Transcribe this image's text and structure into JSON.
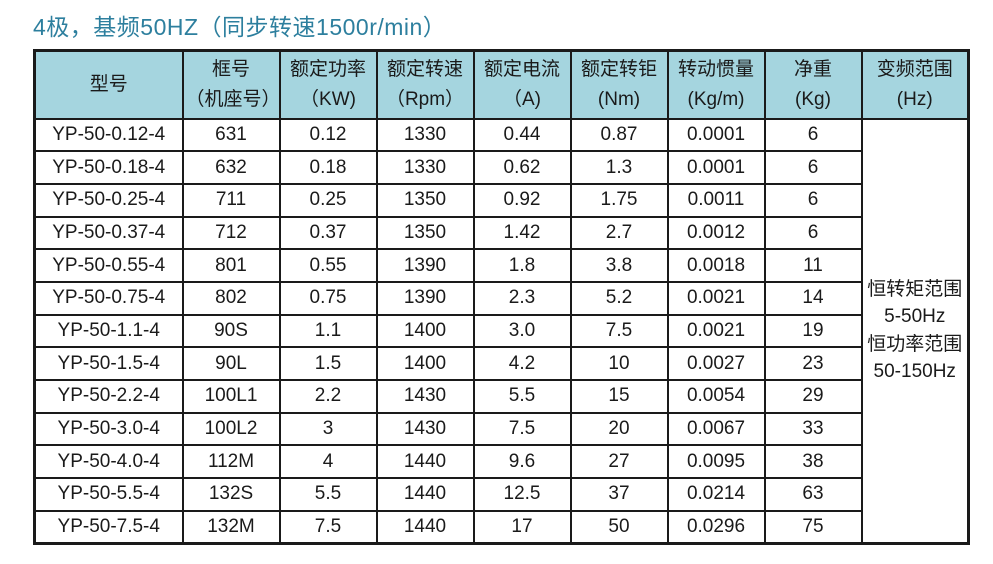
{
  "page": {
    "title": "4极，基频50HZ（同步转速1500r/min）"
  },
  "colors": {
    "title": "#2d7f9e",
    "header_bg": "#a5d5df",
    "border": "#1a1a1a"
  },
  "table": {
    "columns": [
      {
        "line1": "型号",
        "line2": ""
      },
      {
        "line1": "框号",
        "line2": "（机座号）"
      },
      {
        "line1": "额定功率",
        "line2": "（KW)"
      },
      {
        "line1": "额定转速",
        "line2": "（Rpm）"
      },
      {
        "line1": "额定电流",
        "line2": "（A)"
      },
      {
        "line1": "额定转钜",
        "line2": "(Nm)"
      },
      {
        "line1": "转动惯量",
        "line2": "(Kg/m)"
      },
      {
        "line1": "净重",
        "line2": "(Kg)"
      },
      {
        "line1": "变频范围",
        "line2": "(Hz)"
      }
    ],
    "rows": [
      [
        "YP-50-0.12-4",
        "631",
        "0.12",
        "1330",
        "0.44",
        "0.87",
        "0.0001",
        "6"
      ],
      [
        "YP-50-0.18-4",
        "632",
        "0.18",
        "1330",
        "0.62",
        "1.3",
        "0.0001",
        "6"
      ],
      [
        "YP-50-0.25-4",
        "711",
        "0.25",
        "1350",
        "0.92",
        "1.75",
        "0.0011",
        "6"
      ],
      [
        "YP-50-0.37-4",
        "712",
        "0.37",
        "1350",
        "1.42",
        "2.7",
        "0.0012",
        "6"
      ],
      [
        "YP-50-0.55-4",
        "801",
        "0.55",
        "1390",
        "1.8",
        "3.8",
        "0.0018",
        "11"
      ],
      [
        "YP-50-0.75-4",
        "802",
        "0.75",
        "1390",
        "2.3",
        "5.2",
        "0.0021",
        "14"
      ],
      [
        "YP-50-1.1-4",
        "90S",
        "1.1",
        "1400",
        "3.0",
        "7.5",
        "0.0021",
        "19"
      ],
      [
        "YP-50-1.5-4",
        "90L",
        "1.5",
        "1400",
        "4.2",
        "10",
        "0.0027",
        "23"
      ],
      [
        "YP-50-2.2-4",
        "100L1",
        "2.2",
        "1430",
        "5.5",
        "15",
        "0.0054",
        "29"
      ],
      [
        "YP-50-3.0-4",
        "100L2",
        "3",
        "1430",
        "7.5",
        "20",
        "0.0067",
        "33"
      ],
      [
        "YP-50-4.0-4",
        "112M",
        "4",
        "1440",
        "9.6",
        "27",
        "0.0095",
        "38"
      ],
      [
        "YP-50-5.5-4",
        "132S",
        "5.5",
        "1440",
        "12.5",
        "37",
        "0.0214",
        "63"
      ],
      [
        "YP-50-7.5-4",
        "132M",
        "7.5",
        "1440",
        "17",
        "50",
        "0.0296",
        "75"
      ]
    ],
    "freq_range_lines": [
      "恒转矩范围",
      "5-50Hz",
      "恒功率范围",
      "50-150Hz"
    ]
  }
}
